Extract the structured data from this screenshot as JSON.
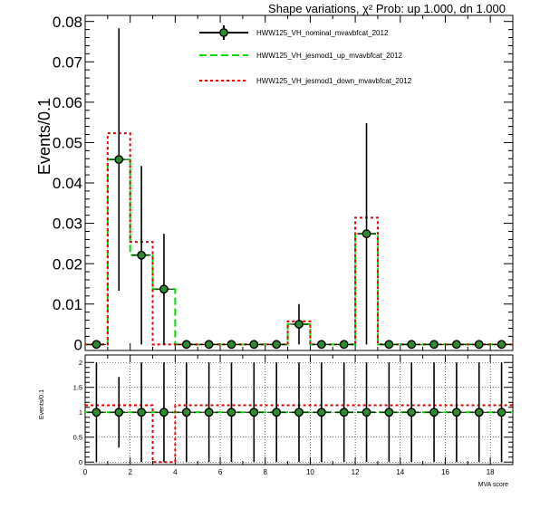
{
  "title": "Shape variations,  χ² Prob: up 1.000, dn 1.000",
  "colors": {
    "nominal": "#000000",
    "up": "#00dd00",
    "down": "#dd0000",
    "marker_fill": "#2e8b2e"
  },
  "chart_data": [
    {
      "type": "line",
      "panel": "top",
      "ylabel": "Events/0.1",
      "ylim": [
        -0.0015,
        0.0815
      ],
      "yticks": [
        "0",
        "0.01",
        "0.02",
        "0.03",
        "0.04",
        "0.05",
        "0.06",
        "0.07",
        "0.08"
      ],
      "x_bins": [
        0,
        1,
        2,
        3,
        4,
        5,
        6,
        7,
        8,
        9,
        10,
        11,
        12,
        13,
        14,
        15,
        16,
        17,
        18,
        19
      ],
      "legend": [
        {
          "key": "nominal",
          "label": "HWW125_VH_nominal_mvavbfcat_2012"
        },
        {
          "key": "up",
          "label": "HWW125_VH_jesmod1_up_mvavbfcat_2012"
        },
        {
          "key": "down",
          "label": "HWW125_VH_jesmod1_down_mvavbfcat_2012"
        }
      ],
      "series": [
        {
          "key": "nominal",
          "name": "HWW125_VH_nominal_mvavbfcat_2012",
          "values": [
            0,
            0.0458,
            0.0221,
            0.0137,
            0,
            0,
            0,
            0,
            0,
            0.005,
            0,
            0,
            0.0274,
            0,
            0,
            0,
            0,
            0,
            0
          ],
          "errors": [
            0,
            0.0325,
            0.0221,
            0.0137,
            0,
            0,
            0,
            0,
            0,
            0.005,
            0,
            0,
            0.0274,
            0,
            0,
            0,
            0,
            0,
            0
          ]
        },
        {
          "key": "up",
          "name": "HWW125_VH_jesmod1_up_mvavbfcat_2012",
          "values": [
            0,
            0.0458,
            0.0221,
            0.0137,
            0,
            0,
            0,
            0,
            0,
            0.005,
            0,
            0,
            0.0274,
            0,
            0,
            0,
            0,
            0,
            0
          ]
        },
        {
          "key": "down",
          "name": "HWW125_VH_jesmod1_down_mvavbfcat_2012",
          "values": [
            0,
            0.0523,
            0.0254,
            0,
            0,
            0,
            0,
            0,
            0,
            0.0057,
            0,
            0,
            0.0314,
            0,
            0,
            0,
            0,
            0,
            0
          ]
        }
      ]
    },
    {
      "type": "line",
      "panel": "ratio",
      "ylabel": "Events/0.1",
      "xlabel": "MVA score",
      "ylim": [
        -0.05,
        2.15
      ],
      "xlim": [
        0,
        19
      ],
      "yticks": [
        "0",
        "0.5",
        "1",
        "1.5",
        "2"
      ],
      "xticks": [
        "0",
        "2",
        "4",
        "6",
        "8",
        "10",
        "12",
        "14",
        "16",
        "18"
      ],
      "series": [
        {
          "key": "nominal",
          "values": [
            1,
            1,
            1,
            1,
            1,
            1,
            1,
            1,
            1,
            1,
            1,
            1,
            1,
            1,
            1,
            1,
            1,
            1,
            1
          ],
          "errors": [
            1,
            0.71,
            1,
            1,
            1,
            1,
            1,
            1,
            1,
            1,
            1,
            1,
            1,
            1,
            1,
            1,
            1,
            1,
            1
          ]
        },
        {
          "key": "up",
          "values": [
            1,
            1,
            1,
            1,
            1,
            1,
            1,
            1,
            1,
            1,
            1,
            1,
            1,
            1,
            1,
            1,
            1,
            1,
            1
          ]
        },
        {
          "key": "down",
          "values": [
            1.14,
            1.14,
            1.14,
            0,
            1.14,
            1.14,
            1.14,
            1.14,
            1.14,
            1.14,
            1.14,
            1.14,
            1.14,
            1.14,
            1.14,
            1.14,
            1.14,
            1.14,
            1.14
          ]
        }
      ]
    }
  ]
}
